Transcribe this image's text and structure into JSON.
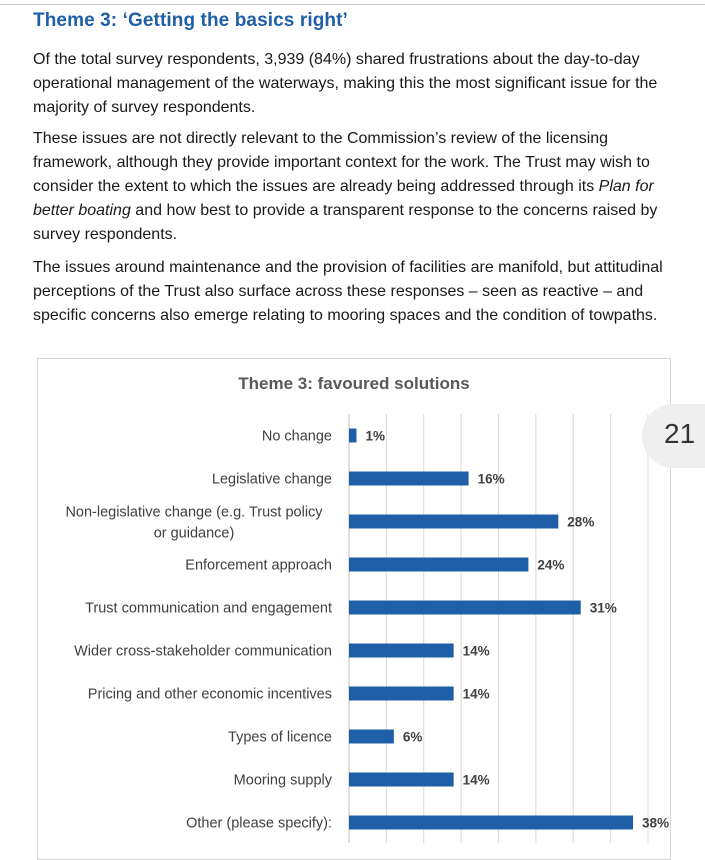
{
  "page": {
    "heading": "Theme 3: ‘Getting the basics right’",
    "paragraphs": [
      "Of the total survey respondents, 3,939 (84%) shared frustrations about the day-to-day operational management of the waterways, making this the most significant issue for the majority of survey respondents.",
      "These issues are not directly relevant to the Commission’s review of the licensing framework, although they provide important context for the work. The Trust may wish to consider the extent to which the issues are already being addressed through its ",
      "Plan for better boating",
      " and how best to provide a transparent response to the concerns raised by survey respondents.",
      "The issues around maintenance and the provision of facilities are manifold, but attitudinal perceptions of the Trust also surface across these responses – seen as reactive – and specific concerns also emerge relating to mooring spaces and the condition of towpaths."
    ],
    "page_number": "21"
  },
  "chart_data": {
    "type": "bar",
    "orientation": "horizontal",
    "title": "Theme 3: favoured solutions",
    "categories": [
      "No change",
      "Legislative change",
      "Non-legislative change (e.g. Trust policy or guidance)",
      "Enforcement approach",
      "Trust communication and engagement",
      "Wider cross-stakeholder communication",
      "Pricing and other economic incentives",
      "Types of licence",
      "Mooring supply",
      "Other (please specify):"
    ],
    "values": [
      1,
      16,
      28,
      24,
      31,
      14,
      14,
      6,
      14,
      38
    ],
    "data_labels": [
      "1%",
      "16%",
      "28%",
      "24%",
      "31%",
      "14%",
      "14%",
      "6%",
      "14%",
      "38%"
    ],
    "unit": "%",
    "xlim": [
      0,
      40
    ],
    "grid": true,
    "legend": "none",
    "colors": {
      "bar": "#1f5fa8",
      "grid": "#d9d9d9",
      "axis": "#bfbfbf",
      "title": "#595959",
      "label": "#404040"
    }
  }
}
